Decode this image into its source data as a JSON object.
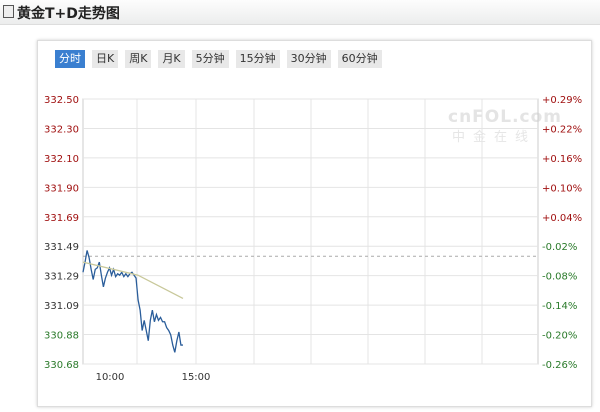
{
  "header": {
    "title": "黄金T+D走势图"
  },
  "tabs": [
    "分时",
    "日K",
    "周K",
    "月K",
    "5分钟",
    "15分钟",
    "30分钟",
    "60分钟"
  ],
  "active_tab": 0,
  "watermark": {
    "line1": "cnFOL.com",
    "line2": "中金在线"
  },
  "colors": {
    "price": "#2a5d9a",
    "avg": "#c8c89a",
    "up": "#a01010",
    "down": "#2a7a2a",
    "grid": "#e4e4e4",
    "active_tab": "#3a7fd0"
  },
  "chart_data": {
    "type": "line",
    "ylim": [
      330.68,
      332.5
    ],
    "y_ticks": [
      "332.50",
      "332.30",
      "332.10",
      "331.90",
      "331.69",
      "331.49",
      "331.29",
      "331.09",
      "330.88",
      "330.68"
    ],
    "y2_ticks": [
      "+0.29%",
      "+0.22%",
      "+0.16%",
      "+0.10%",
      "+0.04%",
      "-0.02%",
      "-0.08%",
      "-0.14%",
      "-0.20%",
      "-0.26%"
    ],
    "x_ticks": [
      "10:00",
      "15:00"
    ],
    "reference_line": 331.42,
    "series": [
      {
        "role": "price",
        "values": [
          331.31,
          331.38,
          331.46,
          331.41,
          331.33,
          331.26,
          331.33,
          331.34,
          331.38,
          331.29,
          331.21,
          331.27,
          331.31,
          331.34,
          331.29,
          331.33,
          331.28,
          331.3,
          331.29,
          331.31,
          331.28,
          331.3,
          331.28,
          331.3,
          331.31,
          331.29,
          331.27,
          331.12,
          331.05,
          330.91,
          330.98,
          330.91,
          330.84,
          330.98,
          331.05,
          330.97,
          331.02,
          330.98,
          331.0,
          330.97,
          330.97,
          330.93,
          330.91,
          330.88,
          330.81,
          330.76,
          330.84,
          330.9,
          330.81,
          330.81
        ]
      },
      {
        "role": "average",
        "values": [
          331.38,
          331.29,
          331.13
        ]
      }
    ]
  }
}
